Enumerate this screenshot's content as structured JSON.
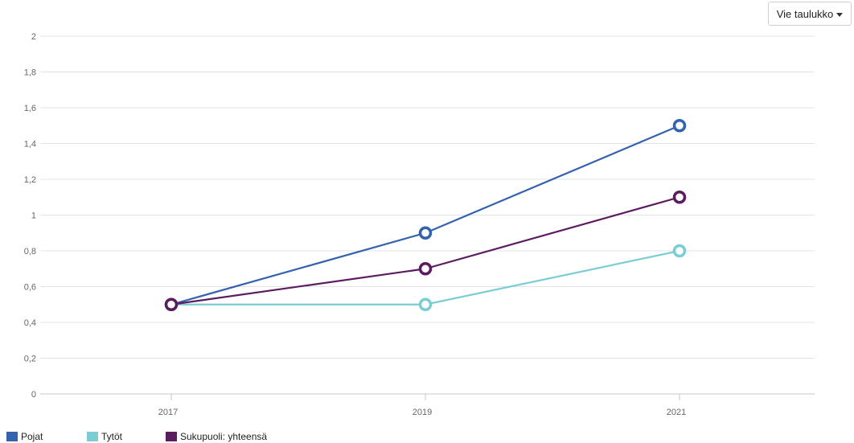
{
  "toolbar": {
    "export_label": "Vie taulukko",
    "export_icon": "caret-down-icon"
  },
  "chart_data": {
    "type": "line",
    "x": [
      "2017",
      "2019",
      "2021"
    ],
    "y_ticks": [
      "0",
      "0,2",
      "0,4",
      "0,6",
      "0,8",
      "1",
      "1,2",
      "1,4",
      "1,6",
      "1,8",
      "2"
    ],
    "ylim": [
      0,
      2
    ],
    "grid": true,
    "legend_position": "bottom-left",
    "series": [
      {
        "name": "Pojat",
        "color": "#3462ad",
        "values": [
          0.5,
          0.9,
          1.5
        ]
      },
      {
        "name": "Tytöt",
        "color": "#7ccdd3",
        "values": [
          0.5,
          0.5,
          0.8
        ]
      },
      {
        "name": "Sukupuoli: yhteensä",
        "color": "#5b1b5f",
        "values": [
          0.5,
          0.7,
          1.1
        ]
      }
    ]
  }
}
